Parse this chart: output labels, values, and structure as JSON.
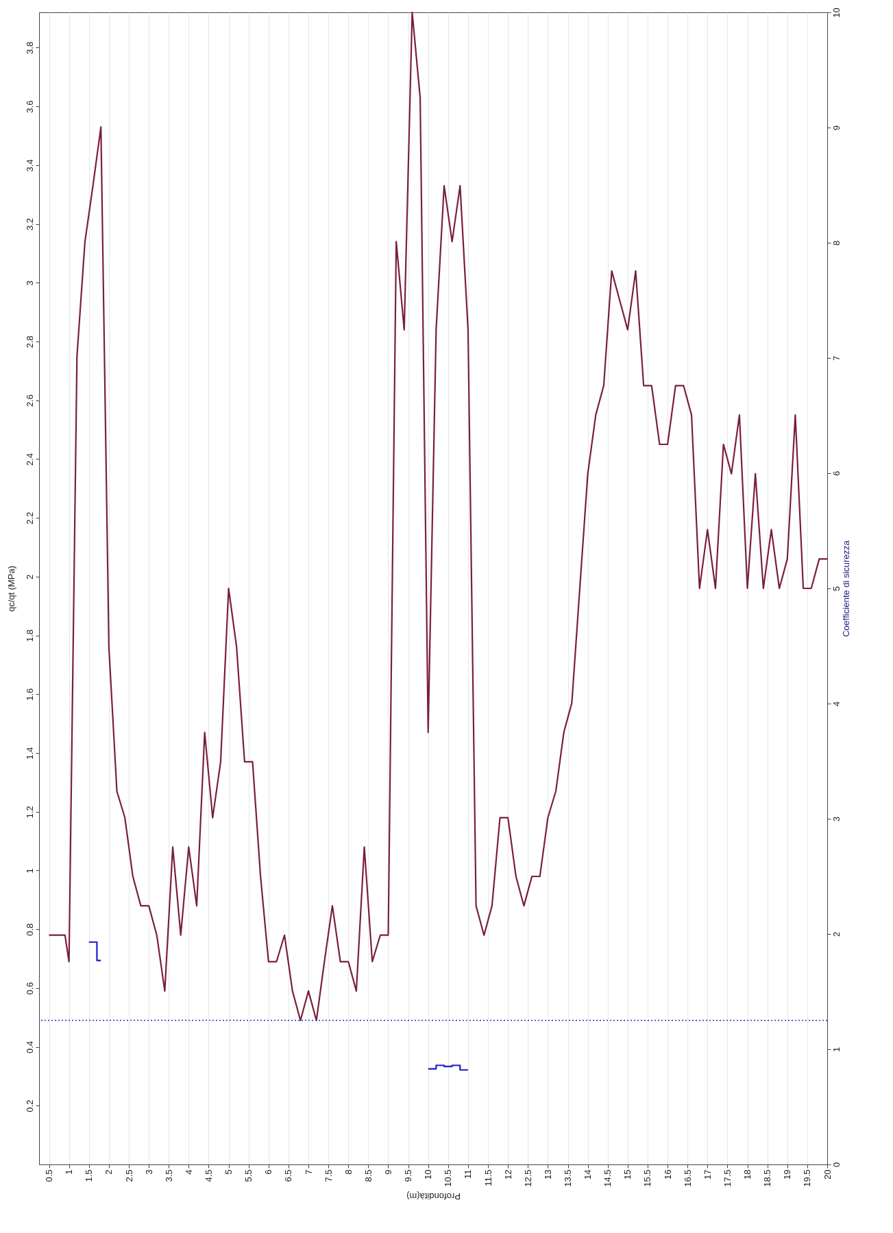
{
  "chart_data": {
    "type": "line",
    "xlabel": "Profondità(m)",
    "ylabel": "qc/qt (MPa)",
    "y2label": "Coefficiente di sicurezza",
    "x": [
      0.5,
      0.7,
      0.9,
      1.0,
      1.2,
      1.4,
      1.6,
      1.8,
      2.0,
      2.2,
      2.4,
      2.6,
      2.8,
      3.0,
      3.2,
      3.4,
      3.6,
      3.8,
      4.0,
      4.2,
      4.4,
      4.6,
      4.8,
      5.0,
      5.2,
      5.4,
      5.6,
      5.8,
      6.0,
      6.2,
      6.4,
      6.6,
      6.8,
      7.0,
      7.2,
      7.4,
      7.6,
      7.8,
      8.0,
      8.2,
      8.4,
      8.6,
      8.8,
      9.0,
      9.2,
      9.4,
      9.6,
      9.8,
      10.0,
      10.2,
      10.4,
      10.6,
      10.8,
      11.0,
      11.2,
      11.4,
      11.6,
      11.8,
      12.0,
      12.2,
      12.4,
      12.6,
      12.8,
      13.0,
      13.2,
      13.4,
      13.6,
      13.8,
      14.0,
      14.2,
      14.4,
      14.6,
      14.8,
      15.0,
      15.2,
      15.4,
      15.6,
      15.8,
      16.0,
      16.2,
      16.4,
      16.6,
      16.8,
      17.0,
      17.2,
      17.4,
      17.6,
      17.8,
      18.0,
      18.2,
      18.4,
      18.6,
      18.8,
      19.0,
      19.2,
      19.4,
      19.6,
      19.8,
      20.0
    ],
    "series": [
      {
        "color": "#7b1e3e",
        "values": [
          0.78,
          0.78,
          0.78,
          0.69,
          2.75,
          3.14,
          3.33,
          3.53,
          1.76,
          1.27,
          1.18,
          0.98,
          0.88,
          0.88,
          0.78,
          0.59,
          1.08,
          0.78,
          1.08,
          0.88,
          1.47,
          1.18,
          1.37,
          1.96,
          1.76,
          1.37,
          1.37,
          0.98,
          0.69,
          0.69,
          0.78,
          0.59,
          0.49,
          0.59,
          0.49,
          0.69,
          0.88,
          0.69,
          0.69,
          0.59,
          1.08,
          0.69,
          0.78,
          0.78,
          3.14,
          2.84,
          3.92,
          3.63,
          1.47,
          2.84,
          3.33,
          3.14,
          3.33,
          2.84,
          0.88,
          0.78,
          0.88,
          1.18,
          1.18,
          0.98,
          0.88,
          0.98,
          0.98,
          1.18,
          1.27,
          1.47,
          1.57,
          1.96,
          2.35,
          2.55,
          2.65,
          3.04,
          2.94,
          2.84,
          3.04,
          2.65,
          2.65,
          2.45,
          2.45,
          2.65,
          2.65,
          2.55,
          1.96,
          2.16,
          1.96,
          2.45,
          2.35,
          2.55,
          1.96,
          2.35,
          1.96,
          2.16,
          1.96,
          2.06,
          2.55,
          1.96,
          1.96,
          2.06,
          2.06
        ]
      },
      {
        "type": "step",
        "axis": "y2",
        "color": "#1a1ad0",
        "x": [
          1.5,
          1.7,
          1.8
        ],
        "values": [
          1.93,
          1.77,
          1.77
        ]
      },
      {
        "type": "step",
        "axis": "y2",
        "color": "#1a1ad0",
        "x": [
          10.0,
          10.2,
          10.4,
          10.6,
          10.8,
          11.0
        ],
        "values": [
          0.83,
          0.86,
          0.85,
          0.86,
          0.82,
          0.82
        ]
      }
    ],
    "xlim": [
      0.25,
      20
    ],
    "xticks": [
      0.5,
      1,
      1.5,
      2,
      2.5,
      3,
      3.5,
      4,
      4.5,
      5,
      5.5,
      6,
      6.5,
      7,
      7.5,
      8,
      8.5,
      9,
      9.5,
      10,
      10.5,
      11,
      11.5,
      12,
      12.5,
      13,
      13.5,
      14,
      14.5,
      15,
      15.5,
      16,
      16.5,
      17,
      17.5,
      18,
      18.5,
      19,
      19.5,
      20
    ],
    "ylim": [
      0,
      3.92
    ],
    "yticks": [
      0.2,
      0.4,
      0.6,
      0.8,
      1,
      1.2,
      1.4,
      1.6,
      1.8,
      2,
      2.2,
      2.4,
      2.6,
      2.8,
      3,
      3.2,
      3.4,
      3.6,
      3.8
    ],
    "y2lim": [
      0,
      10
    ],
    "y2ticks": [
      0,
      1,
      2,
      3,
      4,
      5,
      6,
      7,
      8,
      9,
      10
    ],
    "ref_lines": [
      {
        "axis": "y2",
        "value": 1.25,
        "color": "#2a2ae0",
        "line_style": "dotted"
      }
    ],
    "grid": "x",
    "marker": "none",
    "line_style": "solid"
  }
}
